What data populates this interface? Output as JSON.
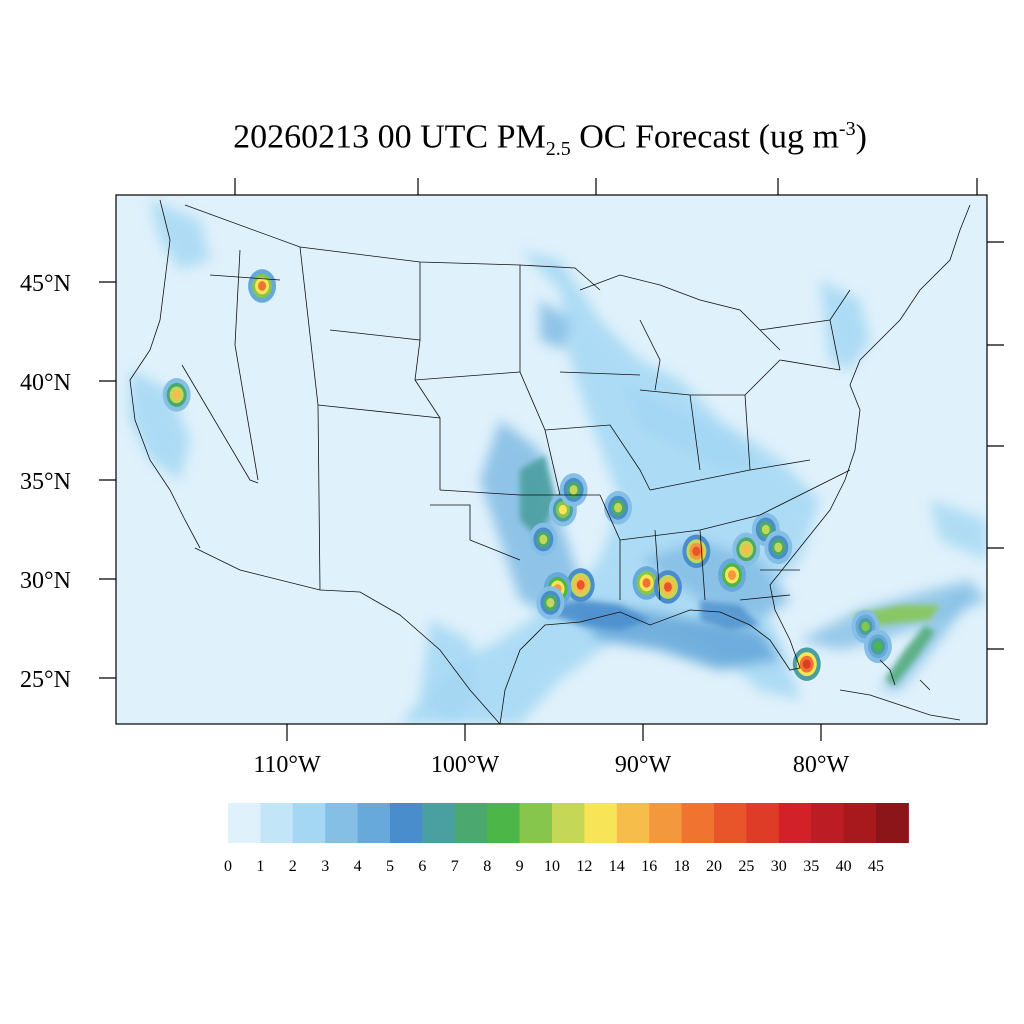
{
  "title": {
    "main_prefix": "20260213 00 UTC PM",
    "subscript": "2.5",
    "main_middle": " OC Forecast (ug m",
    "superscript": "-3",
    "main_suffix": ")"
  },
  "axes": {
    "lat_labels": [
      "45°N",
      "40°N",
      "35°N",
      "30°N",
      "25°N"
    ],
    "lon_labels": [
      "110°W",
      "100°W",
      "90°W",
      "80°W"
    ]
  },
  "colorbar": {
    "labels": [
      "0",
      "1",
      "2",
      "3",
      "4",
      "5",
      "6",
      "7",
      "8",
      "9",
      "10",
      "12",
      "14",
      "16",
      "18",
      "20",
      "25",
      "30",
      "35",
      "40",
      "45"
    ],
    "colors": [
      "#dff1fb",
      "#c2e5f7",
      "#a3d7f3",
      "#86bfe5",
      "#67a9da",
      "#4a8dcc",
      "#4a9fa0",
      "#4ba86e",
      "#4cb748",
      "#86c64c",
      "#c4d756",
      "#f8e457",
      "#f7bd4a",
      "#f4983d",
      "#f07430",
      "#e9552b",
      "#de3c27",
      "#d22128",
      "#bc1c23",
      "#a8191e",
      "#8c1519"
    ]
  },
  "map": {
    "background_color": "#dff1fb",
    "hotspots": [
      {
        "lon": -93.5,
        "lat": 29.7,
        "level": 20
      },
      {
        "lon": -94.8,
        "lat": 29.5,
        "level": 16
      },
      {
        "lon": -95.2,
        "lat": 28.8,
        "level": 10
      },
      {
        "lon": -89.8,
        "lat": 29.8,
        "level": 18
      },
      {
        "lon": -88.6,
        "lat": 29.6,
        "level": 20
      },
      {
        "lon": -87.0,
        "lat": 31.4,
        "level": 22
      },
      {
        "lon": -85.0,
        "lat": 30.2,
        "level": 16
      },
      {
        "lon": -84.2,
        "lat": 31.5,
        "level": 14
      },
      {
        "lon": -80.8,
        "lat": 25.7,
        "level": 25
      },
      {
        "lon": -94.5,
        "lat": 33.5,
        "level": 12
      },
      {
        "lon": -95.6,
        "lat": 32.0,
        "level": 10
      },
      {
        "lon": -93.9,
        "lat": 34.5,
        "level": 10
      },
      {
        "lon": -111.4,
        "lat": 44.8,
        "level": 18
      },
      {
        "lon": -116.2,
        "lat": 39.3,
        "level": 14
      },
      {
        "lon": -91.4,
        "lat": 33.6,
        "level": 10
      },
      {
        "lon": -83.1,
        "lat": 32.5,
        "level": 10
      },
      {
        "lon": -82.4,
        "lat": 31.6,
        "level": 10
      },
      {
        "lon": -77.5,
        "lat": 27.6,
        "level": 9
      },
      {
        "lon": -76.8,
        "lat": 26.6,
        "level": 8
      }
    ]
  }
}
